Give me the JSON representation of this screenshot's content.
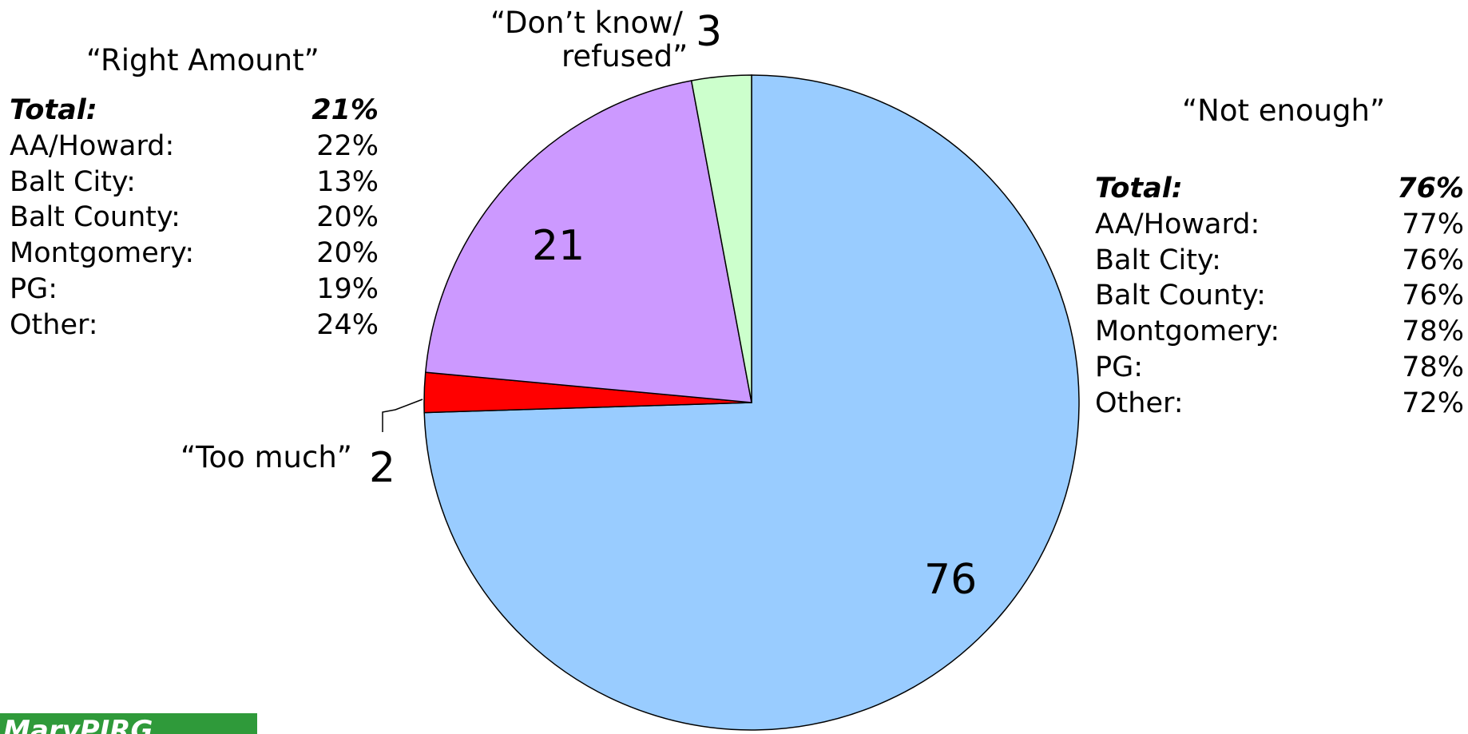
{
  "chart_data": {
    "type": "pie",
    "slices": [
      {
        "name": "“Not enough”",
        "value": 76,
        "label": "76",
        "color": "#99ccff"
      },
      {
        "name": "“Too much”",
        "value": 2,
        "label": "2",
        "color": "#ff0000"
      },
      {
        "name": "“Right Amount”",
        "value": 21,
        "label": "21",
        "color": "#cc99ff"
      },
      {
        "name": "“Don’t know/ refused”",
        "value": 3,
        "label": "3",
        "color": "#ccffcc"
      }
    ]
  },
  "labels": {
    "right_amount": "“Right Amount”",
    "not_enough": "“Not enough”",
    "too_much": "“Too much”",
    "dont_know_line1": "“Don’t know/",
    "dont_know_line2": "refused”"
  },
  "breakdown_right_amount": [
    {
      "label": "Total:",
      "value": "21%"
    },
    {
      "label": "AA/Howard:",
      "value": "22%"
    },
    {
      "label": "Balt City:",
      "value": "13%"
    },
    {
      "label": "Balt County:",
      "value": "20%"
    },
    {
      "label": "Montgomery:",
      "value": "20%"
    },
    {
      "label": "PG:",
      "value": "19%"
    },
    {
      "label": "Other:",
      "value": "24%"
    }
  ],
  "breakdown_not_enough": [
    {
      "label": "Total:",
      "value": "76%"
    },
    {
      "label": "AA/Howard:",
      "value": "77%"
    },
    {
      "label": "Balt City:",
      "value": "76%"
    },
    {
      "label": "Balt County:",
      "value": "76%"
    },
    {
      "label": "Montgomery:",
      "value": "78%"
    },
    {
      "label": "PG:",
      "value": "78%"
    },
    {
      "label": "Other:",
      "value": "72%"
    }
  ],
  "logo": {
    "text": "MaryPIRG",
    "color": "#2f9a3a"
  }
}
